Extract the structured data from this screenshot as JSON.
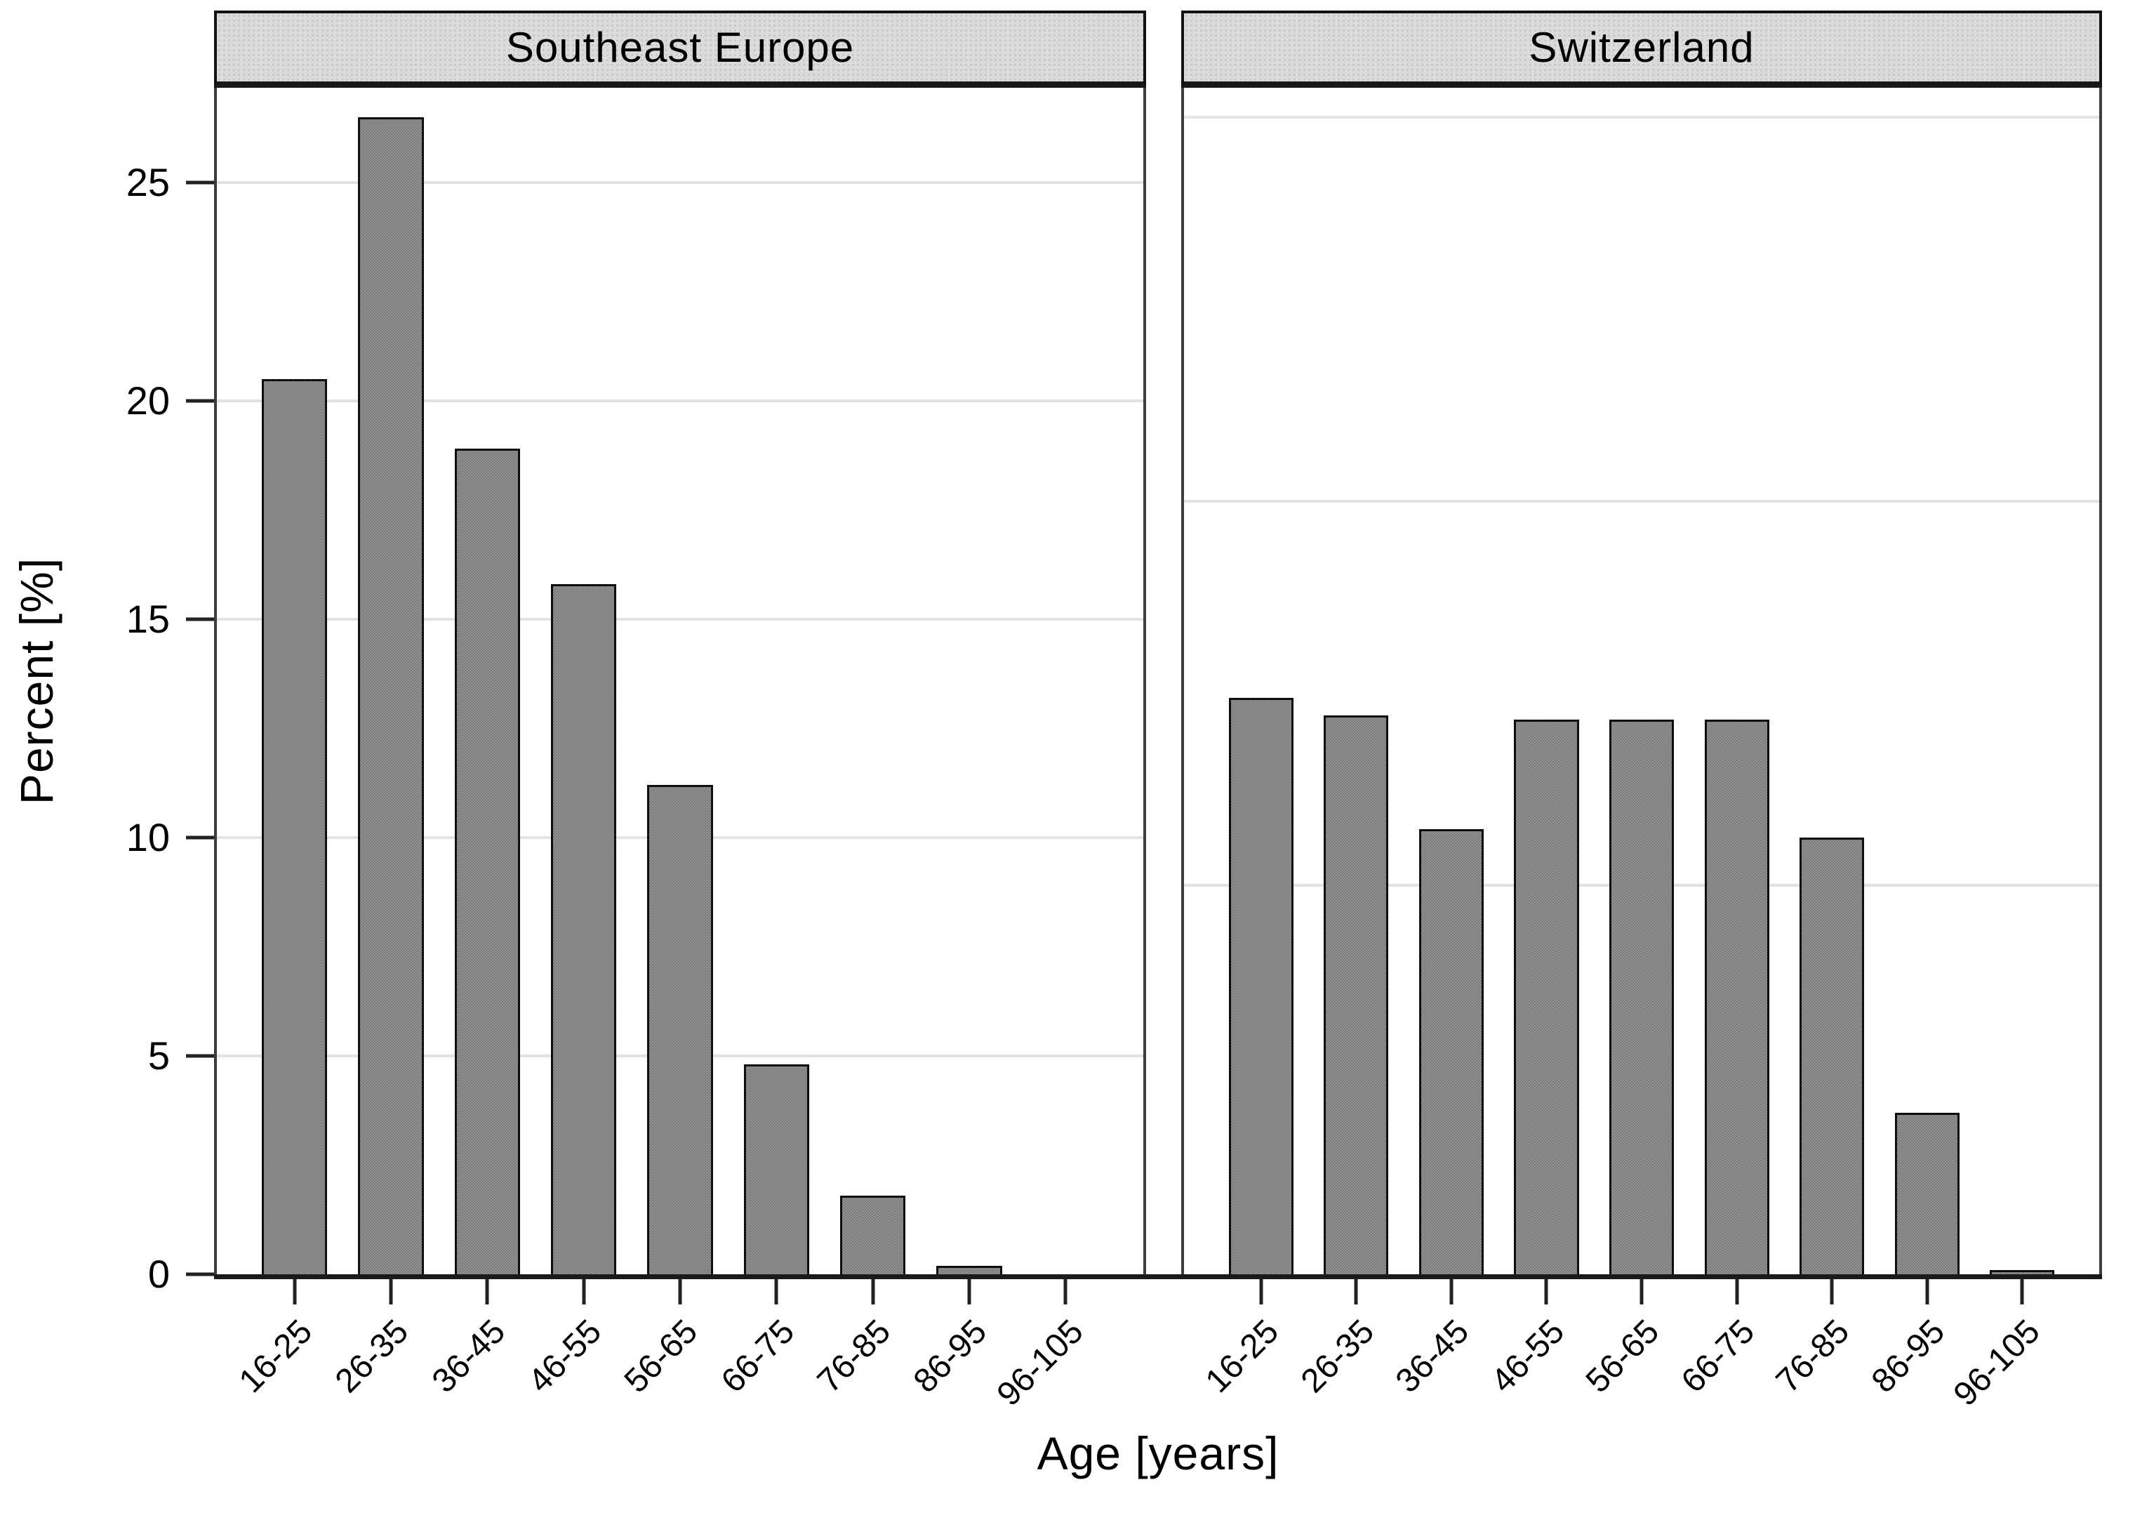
{
  "figure": {
    "y_axis": {
      "label": "Percent [%]",
      "ticks": [
        0,
        5,
        10,
        15,
        20,
        25
      ],
      "ymax": 27.17
    },
    "x_axis": {
      "label": "Age [years]",
      "categories": [
        "16-25",
        "26-35",
        "36-45",
        "46-55",
        "56-65",
        "66-75",
        "76-85",
        "86-95",
        "96-105"
      ]
    },
    "panels": [
      {
        "title": "Southeast Europe",
        "values": [
          20.5,
          26.5,
          18.9,
          15.8,
          11.2,
          4.8,
          1.8,
          0.2,
          0
        ],
        "gridline_values": [
          25,
          20,
          15,
          10,
          5
        ]
      },
      {
        "title": "Switzerland",
        "values": [
          13.2,
          12.8,
          10.2,
          12.7,
          12.7,
          12.7,
          10.0,
          3.7,
          0.1
        ],
        "gridline_values": [
          26.5,
          17.7,
          8.9
        ]
      }
    ],
    "colors": {
      "bar_fill": "#868686",
      "bar_border": "#0e0e0e",
      "gridline": "#e2e2e2",
      "strip_background": "#dbdbdb",
      "strip_border": "#121212",
      "axis_line": "#1b1b1b",
      "background": "#ffffff",
      "text": "#000000"
    }
  },
  "chart_data": {
    "type": "bar",
    "title": "",
    "xlabel": "Age [years]",
    "ylabel": "Percent [%]",
    "categories": [
      "16-25",
      "26-35",
      "36-45",
      "46-55",
      "56-65",
      "66-75",
      "76-85",
      "86-95",
      "96-105"
    ],
    "series": [
      {
        "name": "Southeast Europe",
        "values": [
          20.5,
          26.5,
          18.9,
          15.8,
          11.2,
          4.8,
          1.8,
          0.2,
          0
        ]
      },
      {
        "name": "Switzerland",
        "values": [
          13.2,
          12.8,
          10.2,
          12.7,
          12.7,
          12.7,
          10.0,
          3.7,
          0.1
        ]
      }
    ],
    "facets": [
      "Southeast Europe",
      "Switzerland"
    ],
    "ylim": [
      0,
      27.2
    ],
    "y_tick_values": [
      0,
      5,
      10,
      15,
      20,
      25
    ],
    "grid": "horizontal-light",
    "legend": "none",
    "bar_style": "gray-fill-black-border",
    "x_tick_label_rotation_deg": 45
  }
}
